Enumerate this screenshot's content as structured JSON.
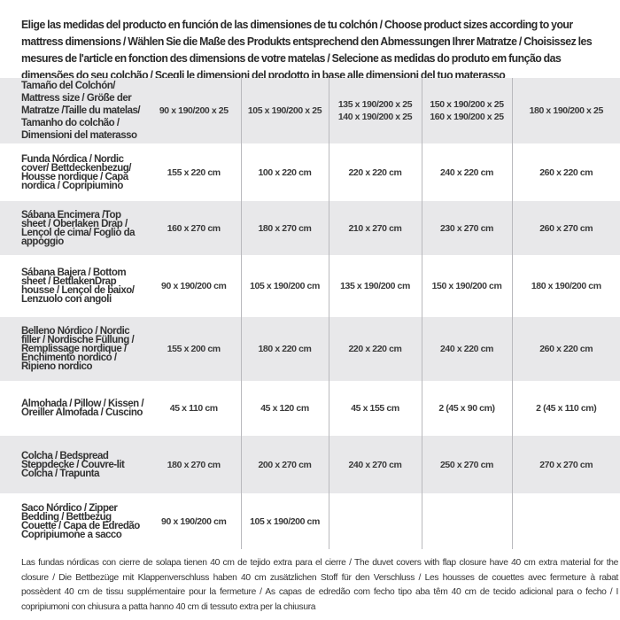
{
  "intro": "Elige las medidas del producto en función de las dimensiones de tu colchón / Choose product sizes according to your mattress dimensions / Wählen Sie die Maße des Produkts entsprechend den Abmessungen Ihrer Matratze / Choisissez les mesures de l'article en fonction des dimensions de votre matelas / Selecione as medidas do produto em função das dimensões do seu colchão / Scegli le dimensioni del prodotto in base alle dimensioni del tuo materasso",
  "table": {
    "header": {
      "label": "Tamaño del Colchón/ Mattress size / Größe der Matratze /Taille du matelas/ Tamanho do colchão / Dimensioni del materasso",
      "sizes": [
        [
          "90 x 190/200 x 25"
        ],
        [
          "105 x 190/200 x 25"
        ],
        [
          "135 x 190/200 x 25",
          "140 x 190/200 x 25"
        ],
        [
          "150 x 190/200 x 25",
          "160 x 190/200 x 25"
        ],
        [
          "180 x 190/200 x 25"
        ]
      ]
    },
    "rows": [
      {
        "label": "Funda Nórdica /  Nordic cover/ Bettdeckenbezug/ Housse nordique  / Capa nordica / Copripiumino",
        "values": [
          "155 x 220 cm",
          "100 x 220 cm",
          "220 x 220 cm",
          "240 x 220 cm",
          "260 x 220 cm"
        ]
      },
      {
        "label": "Sábana Encimera /Top sheet / Oberlaken Drap / Lençol de cima/ Foglio da appoggio",
        "values": [
          "160 x 270 cm",
          "180 x 270 cm",
          "210 x 270 cm",
          "230 x 270 cm",
          "260 x 270 cm"
        ]
      },
      {
        "label": "Sábana Bajera / Bottom sheet / BettlakenDrap housse / Lençol de baixo/ Lenzuolo con angoli",
        "values": [
          "90 x 190/200 cm",
          "105 x 190/200 cm",
          "135 x 190/200 cm",
          "150 x 190/200 cm",
          "180 x 190/200 cm"
        ]
      },
      {
        "label": "Belleno Nórdico / Nordic filler / Nordische Füllung / Remplissage nordique / Enchimento nordico / Ripieno nordico",
        "values": [
          "155 x 200 cm",
          "180 x 220 cm",
          "220 x 220 cm",
          "240 x 220 cm",
          "260 x 220 cm"
        ]
      },
      {
        "label": "Almohada  / Pillow / Kissen / Oreiller Almofada / Cuscino",
        "values": [
          "45 x 110 cm",
          "45 x 120 cm",
          "45 x 155 cm",
          "2 (45 x 90 cm)",
          "2 (45 x 110 cm)"
        ]
      },
      {
        "label": "Colcha / Bedspread Steppdecke / Couvre-lit Colcha / Trapunta",
        "values": [
          "180 x 270 cm",
          "200 x 270 cm",
          "240 x 270 cm",
          "250 x 270 cm",
          "270 x 270 cm"
        ]
      },
      {
        "label": "Saco Nórdico / Zipper Bedding / Bettbezug Couette  / Capa de Edredão Copripiumone a sacco",
        "values": [
          "90 x 190/200 cm",
          "105 x 190/200 cm",
          "",
          "",
          ""
        ]
      }
    ]
  },
  "note": "Las fundas nórdicas con cierre de solapa tienen 40 cm de tejido extra para el cierre  / The duvet covers with flap closure have 40 cm extra material for the closure / Die Bettbezüge mit Klappenverschluss haben 40 cm zusätzlichen Stoff für den Verschluss / Les housses de couettes avec fermeture à rabat possèdent 40 cm de tissu supplémentaire pour la fermeture / As capas de edredão com fecho tipo aba têm 40 cm de tecido adicional para o fecho / I copripiumoni con chiusura a patta hanno 40 cm di tessuto extra per la chiusura",
  "colors": {
    "row_shade": "#e8e8ea",
    "divider": "#b9b9bd",
    "text": "#333333"
  }
}
